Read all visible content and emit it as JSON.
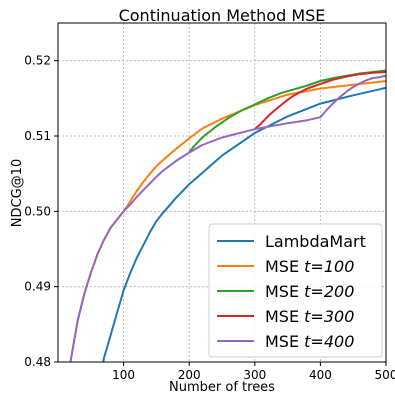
{
  "chart_data": {
    "type": "line",
    "title": "Continuation Method MSE",
    "xlabel": "Number of trees",
    "ylabel": "NDCG@10",
    "xlim": [
      0,
      500
    ],
    "ylim": [
      0.48,
      0.525
    ],
    "xticks": [
      100,
      200,
      300,
      400,
      500
    ],
    "xtick_labels": [
      "100",
      "200",
      "300",
      "400",
      "500"
    ],
    "yticks": [
      0.48,
      0.49,
      0.5,
      0.51,
      0.52
    ],
    "ytick_labels": [
      "0.48",
      "0.49",
      "0.50",
      "0.51",
      "0.52"
    ],
    "grid": true,
    "legend_position": "lower-right",
    "series": [
      {
        "name": "LambdaMart",
        "label_main": "LambdaMart",
        "label_t": "",
        "color": "#1f77b4",
        "x": [
          65,
          70,
          80,
          90,
          100,
          110,
          120,
          130,
          140,
          150,
          160,
          180,
          200,
          220,
          250,
          300,
          350,
          400,
          450,
          500
        ],
        "y": [
          0.478,
          0.4805,
          0.4835,
          0.4865,
          0.4895,
          0.4918,
          0.4938,
          0.4955,
          0.4972,
          0.4987,
          0.4998,
          0.5018,
          0.5036,
          0.5051,
          0.5074,
          0.5104,
          0.5126,
          0.5143,
          0.5154,
          0.5164
        ]
      },
      {
        "name": "MSE t=100",
        "label_main": "MSE ",
        "label_t": "t=100",
        "color": "#ff7f0e",
        "x": [
          15,
          20,
          30,
          40,
          50,
          60,
          70,
          80,
          90,
          100,
          110,
          120,
          130,
          140,
          150,
          160,
          180,
          200,
          220,
          250,
          300,
          350,
          400,
          450,
          500
        ],
        "y": [
          0.478,
          0.4805,
          0.4855,
          0.489,
          0.4918,
          0.4943,
          0.4962,
          0.4978,
          0.4989,
          0.5,
          0.5013,
          0.5027,
          0.5039,
          0.505,
          0.506,
          0.5068,
          0.5083,
          0.5097,
          0.511,
          0.5123,
          0.5141,
          0.5155,
          0.5163,
          0.5168,
          0.5173
        ]
      },
      {
        "name": "MSE t=200",
        "label_main": "MSE ",
        "label_t": "t=200",
        "color": "#2ca02c",
        "x": [
          200,
          210,
          220,
          240,
          260,
          280,
          300,
          320,
          340,
          360,
          380,
          400,
          420,
          440,
          460,
          480,
          500
        ],
        "y": [
          0.5079,
          0.5089,
          0.5098,
          0.5112,
          0.5124,
          0.5134,
          0.5142,
          0.515,
          0.5157,
          0.5162,
          0.5167,
          0.5173,
          0.5177,
          0.518,
          0.5183,
          0.5185,
          0.5187
        ]
      },
      {
        "name": "MSE t=300",
        "label_main": "MSE ",
        "label_t": "t=300",
        "color": "#d62728",
        "x": [
          300,
          310,
          320,
          330,
          340,
          350,
          360,
          380,
          400,
          420,
          440,
          460,
          480,
          500
        ],
        "y": [
          0.5109,
          0.5117,
          0.5126,
          0.5134,
          0.5141,
          0.5148,
          0.5154,
          0.5163,
          0.5169,
          0.5175,
          0.5179,
          0.5182,
          0.5184,
          0.5185
        ]
      },
      {
        "name": "MSE t=400",
        "label_main": "MSE ",
        "label_t": "t=400",
        "color": "#9467bd",
        "x": [
          15,
          20,
          30,
          40,
          50,
          60,
          70,
          80,
          90,
          100,
          110,
          120,
          130,
          140,
          150,
          160,
          180,
          200,
          220,
          250,
          300,
          350,
          380,
          400,
          410,
          420,
          430,
          440,
          450,
          460,
          470,
          480,
          490,
          500
        ],
        "y": [
          0.478,
          0.4805,
          0.4855,
          0.489,
          0.4918,
          0.4943,
          0.4962,
          0.4978,
          0.4989,
          0.5,
          0.5009,
          0.5019,
          0.5028,
          0.5037,
          0.5046,
          0.5054,
          0.5067,
          0.5078,
          0.5088,
          0.5098,
          0.5109,
          0.5117,
          0.5121,
          0.5125,
          0.5135,
          0.5144,
          0.5152,
          0.5159,
          0.5165,
          0.517,
          0.5174,
          0.5177,
          0.5178,
          0.518
        ]
      }
    ]
  }
}
